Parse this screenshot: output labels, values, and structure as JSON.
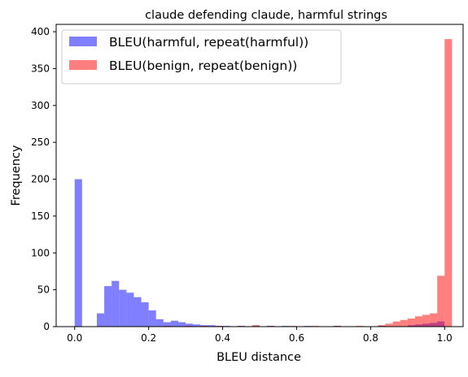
{
  "chart_data": {
    "type": "histogram",
    "title": "claude defending claude, harmful strings",
    "xlabel": "BLEU distance",
    "ylabel": "Frequency",
    "xlim": [
      -0.05,
      1.05
    ],
    "ylim": [
      0,
      410
    ],
    "x_ticks": [
      "0.0",
      "0.2",
      "0.4",
      "0.6",
      "0.8",
      "1.0"
    ],
    "y_ticks": [
      "0",
      "50",
      "100",
      "150",
      "200",
      "250",
      "300",
      "350",
      "400"
    ],
    "legend_position": "top-left",
    "grid": false,
    "bin_width": 0.02,
    "series": [
      {
        "name": "BLEU(harmful, repeat(harmful))",
        "color": "#0000ff",
        "alpha": 0.5,
        "bins": [
          {
            "x0": 0.0,
            "count": 200
          },
          {
            "x0": 0.06,
            "count": 18
          },
          {
            "x0": 0.08,
            "count": 55
          },
          {
            "x0": 0.1,
            "count": 62
          },
          {
            "x0": 0.12,
            "count": 50
          },
          {
            "x0": 0.14,
            "count": 46
          },
          {
            "x0": 0.16,
            "count": 40
          },
          {
            "x0": 0.18,
            "count": 33
          },
          {
            "x0": 0.2,
            "count": 22
          },
          {
            "x0": 0.22,
            "count": 10
          },
          {
            "x0": 0.24,
            "count": 6
          },
          {
            "x0": 0.26,
            "count": 8
          },
          {
            "x0": 0.28,
            "count": 6
          },
          {
            "x0": 0.3,
            "count": 4
          },
          {
            "x0": 0.32,
            "count": 3
          },
          {
            "x0": 0.34,
            "count": 2
          },
          {
            "x0": 0.36,
            "count": 2
          },
          {
            "x0": 0.38,
            "count": 1
          },
          {
            "x0": 0.4,
            "count": 1
          },
          {
            "x0": 0.44,
            "count": 1
          },
          {
            "x0": 0.48,
            "count": 1
          },
          {
            "x0": 0.52,
            "count": 1
          },
          {
            "x0": 0.56,
            "count": 1
          },
          {
            "x0": 0.62,
            "count": 1
          },
          {
            "x0": 0.7,
            "count": 1
          },
          {
            "x0": 0.82,
            "count": 1
          },
          {
            "x0": 0.9,
            "count": 2
          },
          {
            "x0": 0.92,
            "count": 3
          },
          {
            "x0": 0.94,
            "count": 4
          },
          {
            "x0": 0.96,
            "count": 5
          },
          {
            "x0": 0.98,
            "count": 7
          }
        ]
      },
      {
        "name": "BLEU(benign, repeat(benign))",
        "color": "#ff0000",
        "alpha": 0.5,
        "bins": [
          {
            "x0": 0.24,
            "count": 1
          },
          {
            "x0": 0.3,
            "count": 1
          },
          {
            "x0": 0.34,
            "count": 1
          },
          {
            "x0": 0.38,
            "count": 1
          },
          {
            "x0": 0.44,
            "count": 1
          },
          {
            "x0": 0.48,
            "count": 2
          },
          {
            "x0": 0.52,
            "count": 1
          },
          {
            "x0": 0.58,
            "count": 1
          },
          {
            "x0": 0.64,
            "count": 1
          },
          {
            "x0": 0.7,
            "count": 1
          },
          {
            "x0": 0.76,
            "count": 1
          },
          {
            "x0": 0.82,
            "count": 2
          },
          {
            "x0": 0.84,
            "count": 4
          },
          {
            "x0": 0.86,
            "count": 7
          },
          {
            "x0": 0.88,
            "count": 9
          },
          {
            "x0": 0.9,
            "count": 11
          },
          {
            "x0": 0.92,
            "count": 14
          },
          {
            "x0": 0.94,
            "count": 16
          },
          {
            "x0": 0.96,
            "count": 18
          },
          {
            "x0": 0.98,
            "count": 69
          },
          {
            "x0": 1.0,
            "count": 390
          }
        ]
      }
    ]
  }
}
